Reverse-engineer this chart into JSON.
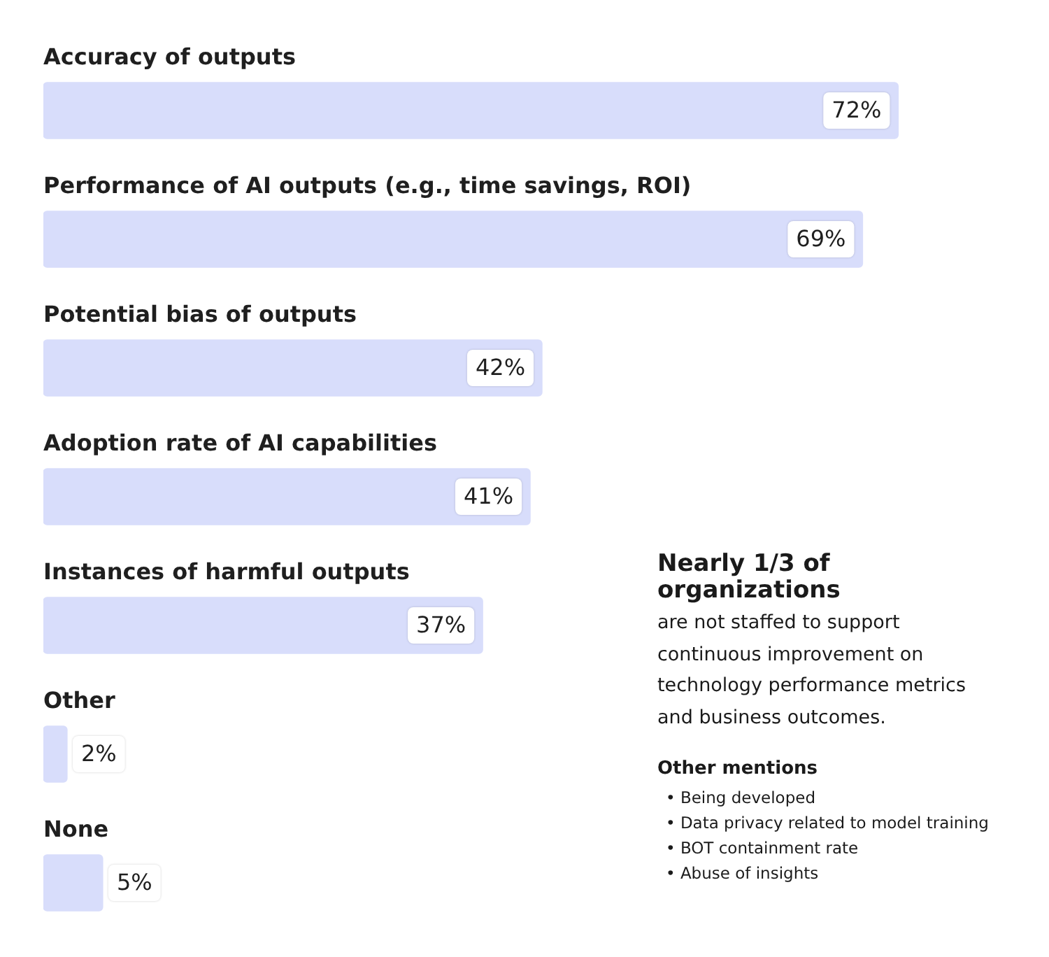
{
  "chart_data": {
    "type": "bar",
    "orientation": "horizontal",
    "categories": [
      "Accuracy of outputs",
      "Performance of AI outputs (e.g., time savings, ROI)",
      "Potential bias of outputs",
      "Adoption rate of AI capabilities",
      "Instances of harmful outputs",
      "Other",
      "None"
    ],
    "values": [
      72,
      69,
      42,
      41,
      37,
      2,
      5
    ],
    "value_labels": [
      "72%",
      "69%",
      "42%",
      "41%",
      "37%",
      "2%",
      "5%"
    ],
    "color": "#d8ddfb",
    "tick_labels": "y",
    "legend": false,
    "annotations": [
      "Nearly 1/3 of organizations",
      "are not staffed to support continuous improvement on technology performance metrics and business outcomes.",
      "Other mentions",
      "•  Being developed",
      "•  Data privacy related to model training",
      "•  BOT containment rate",
      "•  Abuse of insights"
    ]
  }
}
